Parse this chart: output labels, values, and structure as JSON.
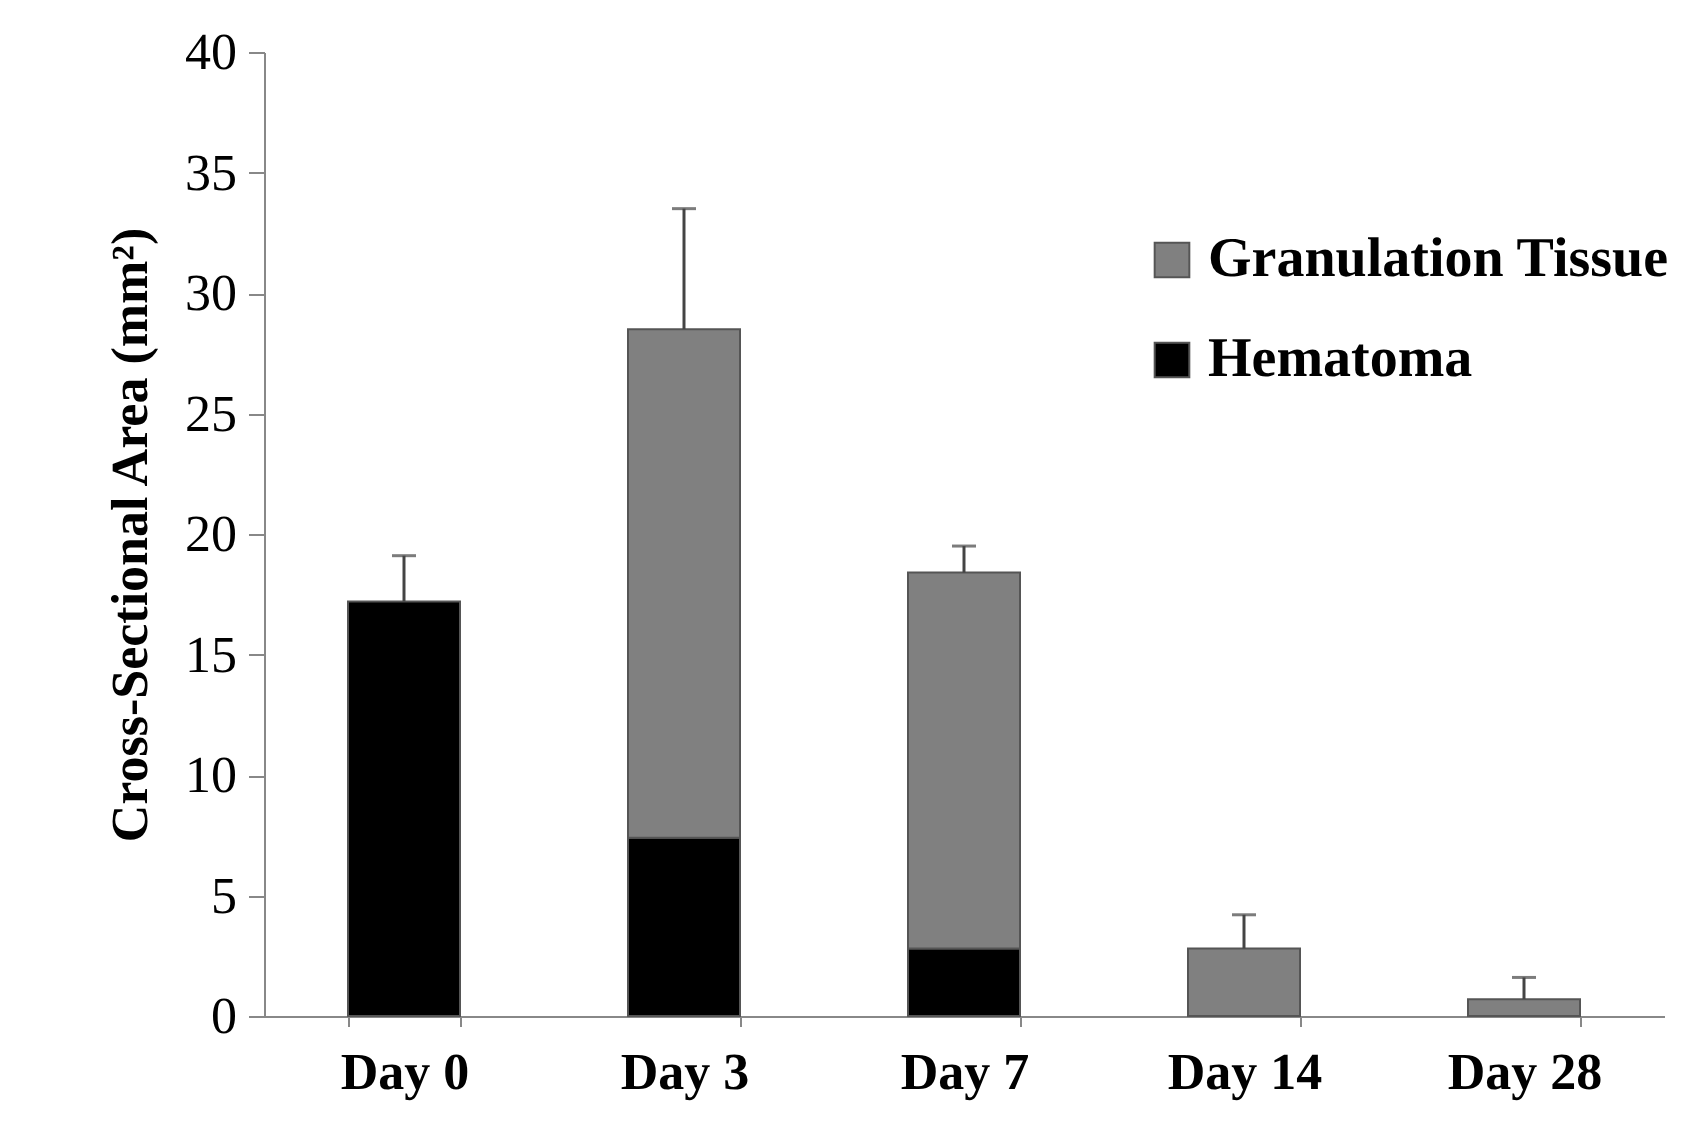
{
  "chart_data": {
    "type": "bar",
    "stacked": true,
    "ylabel": "Cross-Sectional Area (mm²)",
    "categories": [
      "Day 0",
      "Day 3",
      "Day 7",
      "Day 14",
      "Day 28"
    ],
    "series": [
      {
        "name": "Hematoma",
        "color": "#000000",
        "values": [
          17.2,
          7.4,
          2.8,
          null,
          null
        ],
        "errors": [
          [
            17.2,
            19.1
          ],
          null,
          null,
          null,
          null
        ]
      },
      {
        "name": "Granulation Tissue",
        "color": "#808080",
        "values": [
          null,
          21.1,
          15.6,
          2.8,
          0.7
        ],
        "errors": [
          null,
          [
            28.5,
            33.5
          ],
          [
            18.4,
            19.5
          ],
          [
            2.8,
            4.2
          ],
          [
            0.7,
            1.6
          ]
        ]
      }
    ],
    "ylim": [
      0,
      40
    ],
    "yticks": [
      0,
      5,
      10,
      15,
      20,
      25,
      30,
      35,
      40
    ],
    "grid": false,
    "legend": "top right"
  }
}
